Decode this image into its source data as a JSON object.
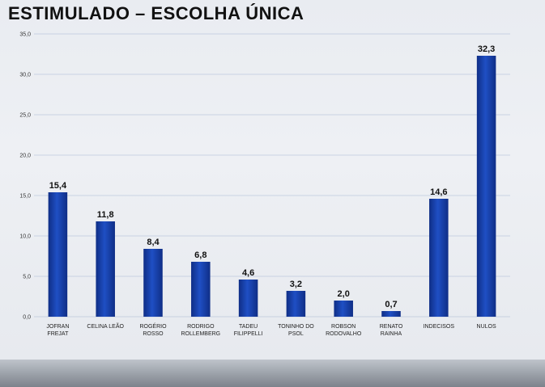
{
  "header": {
    "title": "ESTIMULADO – ESCOLHA ÚNICA"
  },
  "colors": {
    "bar": "#1f4fc4",
    "bar_dark": "#0f2e86",
    "grid": "#8aa0c8"
  },
  "chart_data": {
    "type": "bar",
    "title": "ESTIMULADO – ESCOLHA ÚNICA",
    "xlabel": "",
    "ylabel": "",
    "ylim": [
      0,
      35
    ],
    "yticks": [
      "0,0",
      "5,0",
      "10,0",
      "15,0",
      "20,0",
      "25,0",
      "30,0",
      "35,0"
    ],
    "grid": true,
    "categories": [
      [
        "JOFRAN",
        "FREJAT"
      ],
      [
        "CELINA LEÃO"
      ],
      [
        "ROGÉRIO",
        "ROSSO"
      ],
      [
        "RODRIGO",
        "ROLLEMBERG"
      ],
      [
        "TADEU",
        "FILIPPELLI"
      ],
      [
        "TONINHO DO",
        "PSOL"
      ],
      [
        "ROBSON",
        "RODOVALHO"
      ],
      [
        "RENATO",
        "RAINHA"
      ],
      [
        "INDECISOS"
      ],
      [
        "NULOS"
      ]
    ],
    "values": [
      15.4,
      11.8,
      8.4,
      6.8,
      4.6,
      3.2,
      2.0,
      0.7,
      14.6,
      32.3
    ],
    "value_labels": [
      "15,4",
      "11,8",
      "8,4",
      "6,8",
      "4,6",
      "3,2",
      "2,0",
      "0,7",
      "14,6",
      "32,3"
    ]
  }
}
